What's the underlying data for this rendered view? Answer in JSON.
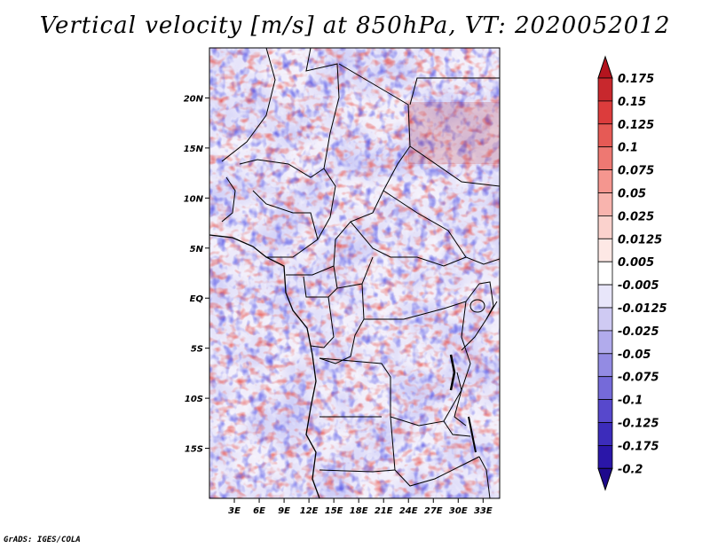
{
  "title": "Vertical velocity [m/s] at 850hPa, VT: 2020052012",
  "footer": "GrADS: IGES/COLA",
  "chart_data": {
    "type": "heatmap",
    "title": "Vertical velocity [m/s] at 850hPa, VT: 2020052012",
    "variable": "Vertical velocity",
    "units": "m/s",
    "level": "850hPa",
    "valid_time": "2020052012",
    "x_axis": {
      "range": [
        0,
        35
      ],
      "tick_values": [
        3,
        6,
        9,
        12,
        15,
        18,
        21,
        24,
        27,
        30,
        33
      ],
      "tick_labels": [
        "3E",
        "6E",
        "9E",
        "12E",
        "15E",
        "18E",
        "21E",
        "24E",
        "27E",
        "30E",
        "33E"
      ]
    },
    "y_axis": {
      "range": [
        -20,
        25
      ],
      "tick_values": [
        20,
        15,
        10,
        5,
        0,
        -5,
        -10,
        -15
      ],
      "tick_labels": [
        "20N",
        "15N",
        "10N",
        "5N",
        "EQ",
        "5S",
        "10S",
        "15S"
      ]
    },
    "colorbar": {
      "levels": [
        "0.175",
        "0.15",
        "0.125",
        "0.1",
        "0.075",
        "0.05",
        "0.025",
        "0.0125",
        "0.005",
        "-0.005",
        "-0.0125",
        "-0.025",
        "-0.05",
        "-0.075",
        "-0.1",
        "-0.125",
        "-0.175",
        "-0.2"
      ],
      "colors": [
        "#b4141e",
        "#c8282d",
        "#dc3c3c",
        "#e65a55",
        "#ee7872",
        "#f5968f",
        "#f8b4ae",
        "#fbd2cd",
        "#fde8e5",
        "#ffffff",
        "#e8e6fa",
        "#cfcaf3",
        "#b1abec",
        "#938be3",
        "#756ad9",
        "#5748cc",
        "#3c2cbb",
        "#2a16a8",
        "#1e0a8c"
      ]
    },
    "field_note_colors": {
      "land_noise_up": "#e8554f",
      "land_noise_down": "#5a5ae6",
      "ocean": "#c8c8f5",
      "border": "#000000"
    }
  }
}
